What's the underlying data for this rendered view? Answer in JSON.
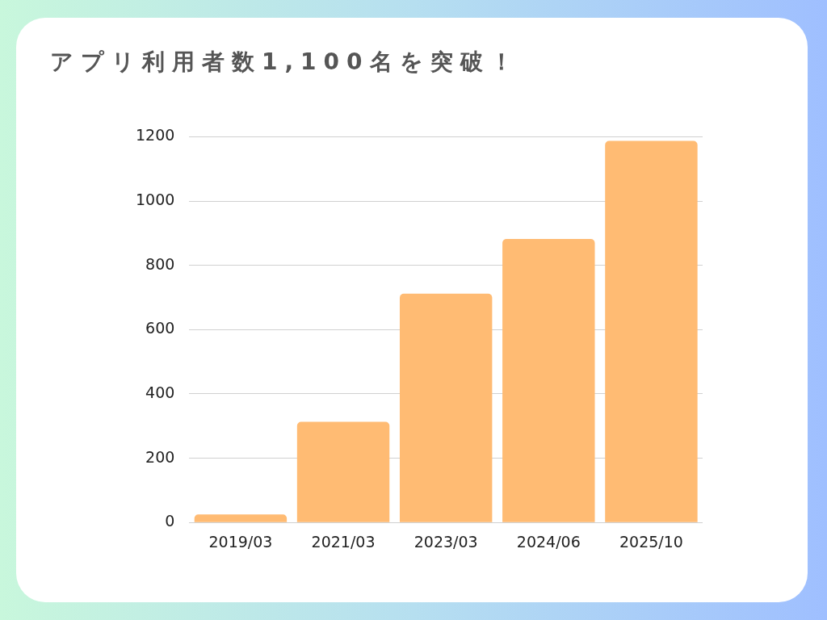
{
  "chart_data": {
    "type": "bar",
    "title": "アプリ利用者数1,100名を突破！",
    "categories": [
      "2019/03",
      "2021/03",
      "2023/03",
      "2024/06",
      "2025/10"
    ],
    "values": [
      25,
      313,
      712,
      882,
      1187
    ],
    "color": "#ffbb73",
    "ylim": [
      0,
      1200
    ],
    "yticks": [
      0,
      200,
      400,
      600,
      800,
      1000,
      1200
    ],
    "grid": "y",
    "legend": false
  }
}
